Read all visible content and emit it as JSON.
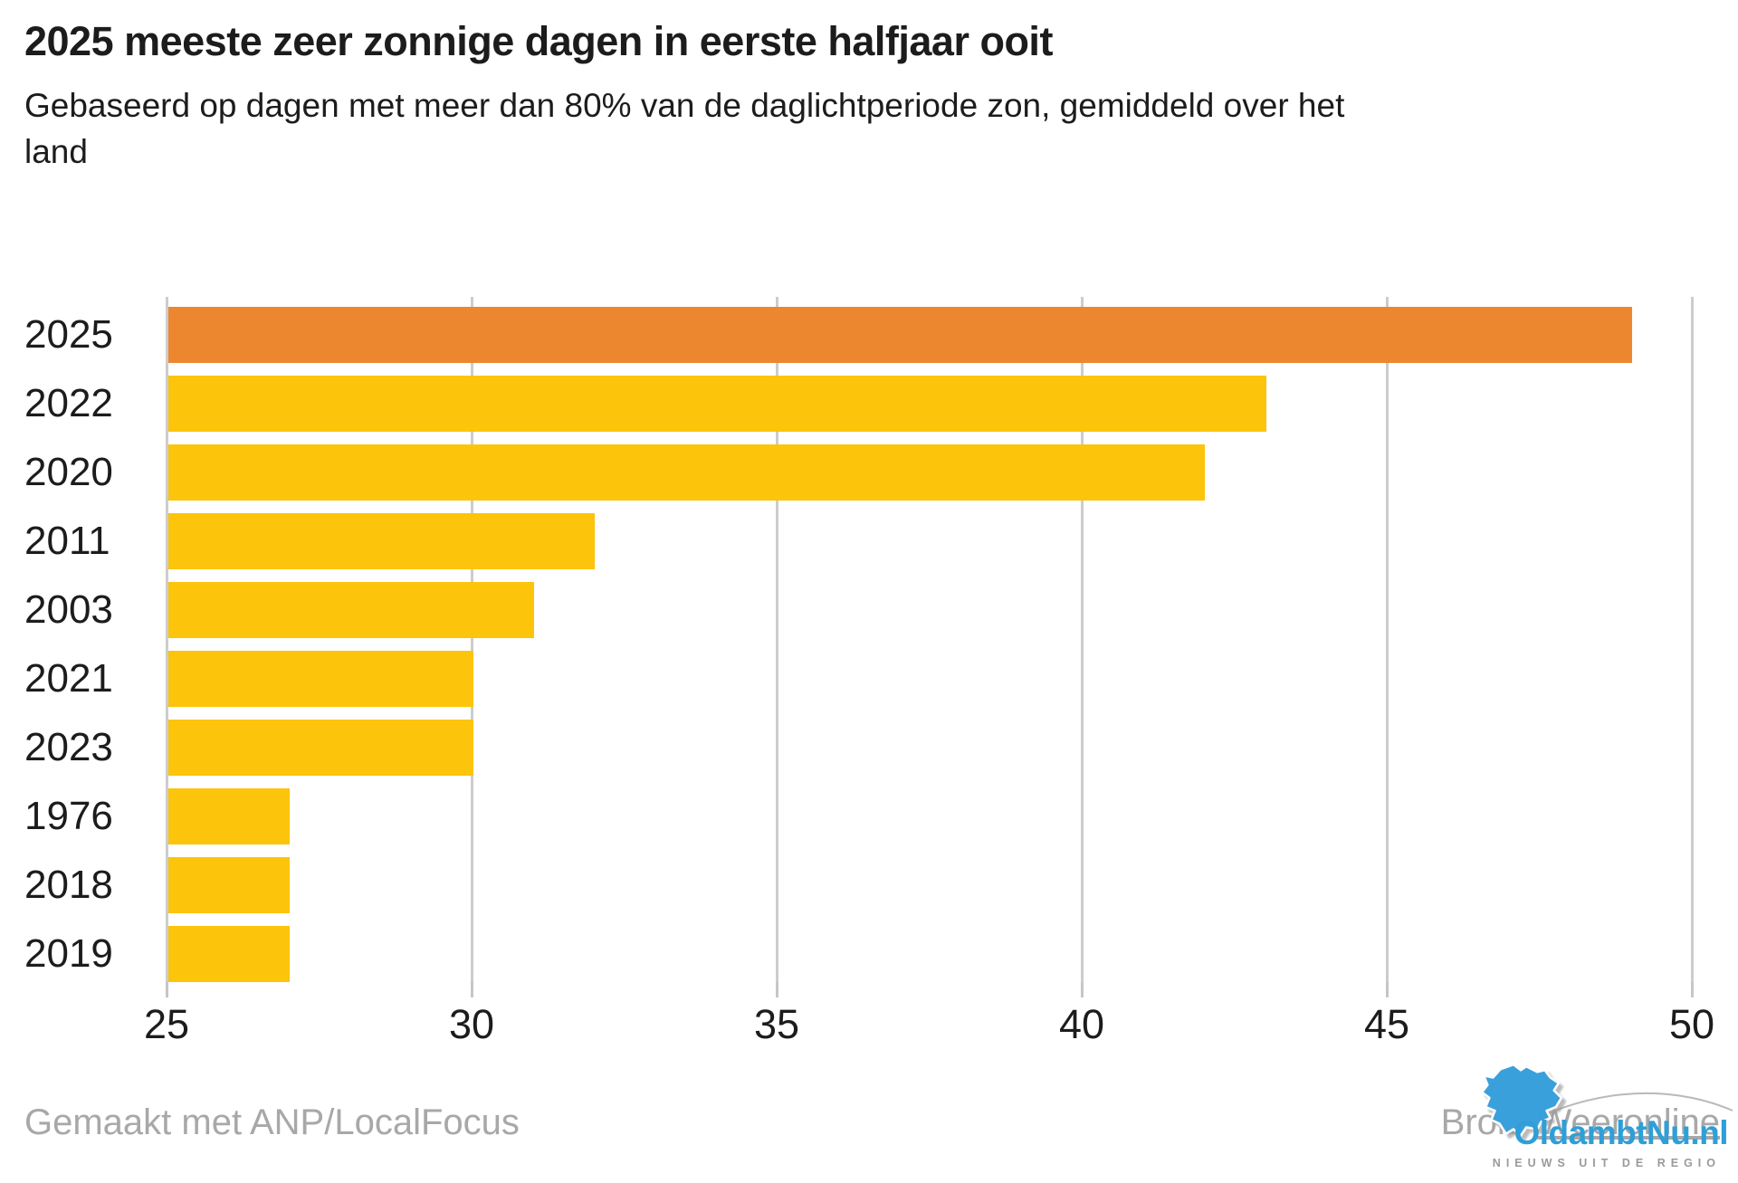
{
  "chart_data": {
    "type": "bar",
    "orientation": "horizontal",
    "title": "2025 meeste zeer zonnige dagen in eerste halfjaar ooit",
    "subtitle": "Gebaseerd op dagen met meer dan 80% van de daglichtperiode zon, gemiddeld over het land",
    "categories": [
      "2025",
      "2022",
      "2020",
      "2011",
      "2003",
      "2021",
      "2023",
      "1976",
      "2018",
      "2019"
    ],
    "values": [
      49,
      43,
      42,
      32,
      31,
      30,
      30,
      27,
      27,
      27
    ],
    "highlight_category": "2025",
    "highlight_color": "#ed872f",
    "bar_color": "#fcc40a",
    "xlim": [
      25,
      50
    ],
    "x_ticks": [
      25,
      30,
      35,
      40,
      45,
      50
    ],
    "xlabel": "",
    "ylabel": "",
    "grid": true,
    "legend": "none"
  },
  "footer": {
    "credit": "Gemaakt met ANP/LocalFocus",
    "source_prefix": "Bron: ",
    "source_link": "Weeronline"
  },
  "logo": {
    "site_name": "OldambtNu.nl",
    "tagline": "NIEUWS UIT DE REGIO",
    "brand_color": "#2e9fd8"
  },
  "colors": {
    "grid": "#cccccc",
    "axis_text": "#1c1c1c",
    "muted_text": "#a8a8a8"
  }
}
